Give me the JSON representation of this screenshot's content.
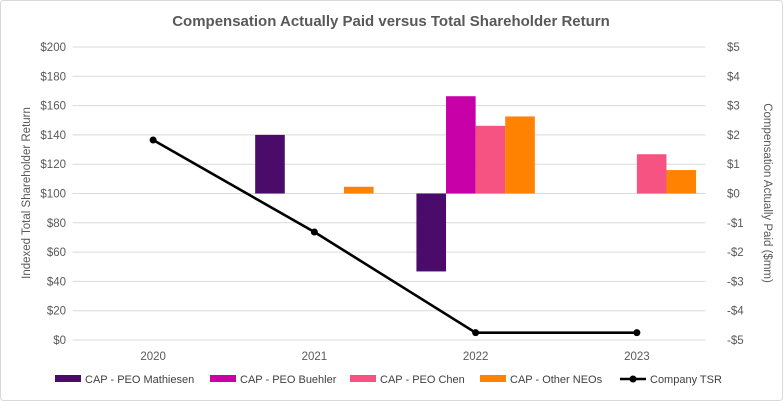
{
  "chart_data": {
    "type": "bar",
    "title": "Compensation Actually Paid versus Total Shareholder Return",
    "categories": [
      "2020",
      "2021",
      "2022",
      "2023"
    ],
    "ylabel": "Indexed Total Shareholder Return",
    "y2label": "Compensation Actually Paid ($mm)",
    "ylim": [
      0,
      200
    ],
    "y2lim": [
      -5,
      5
    ],
    "yticks": [
      "$0",
      "$20",
      "$40",
      "$60",
      "$80",
      "$100",
      "$120",
      "$140",
      "$160",
      "$180",
      "$200"
    ],
    "y2ticks": [
      "-$5",
      "-$4",
      "-$3",
      "-$2",
      "-$1",
      "$0",
      "$1",
      "$2",
      "$3",
      "$4",
      "$5"
    ],
    "grid": true,
    "legend_position": "bottom",
    "series": [
      {
        "name": "CAP - PEO Mathiesen",
        "type": "bar",
        "axis": "right",
        "color": "#4b0b6b",
        "values": [
          null,
          2.0,
          -2.66,
          null
        ]
      },
      {
        "name": "CAP - PEO Buehler",
        "type": "bar",
        "axis": "right",
        "color": "#c800a8",
        "values": [
          null,
          null,
          3.32,
          null
        ]
      },
      {
        "name": "CAP - PEO Chen",
        "type": "bar",
        "axis": "right",
        "color": "#f65282",
        "values": [
          null,
          null,
          2.31,
          1.34
        ]
      },
      {
        "name": "CAP - Other NEOs",
        "type": "bar",
        "axis": "right",
        "color": "#ff8200",
        "values": [
          null,
          0.23,
          2.63,
          0.8
        ]
      },
      {
        "name": "Company TSR",
        "type": "line",
        "axis": "left",
        "color": "#000000",
        "values": [
          136.5,
          73.7,
          5.0,
          5.0
        ]
      }
    ]
  }
}
